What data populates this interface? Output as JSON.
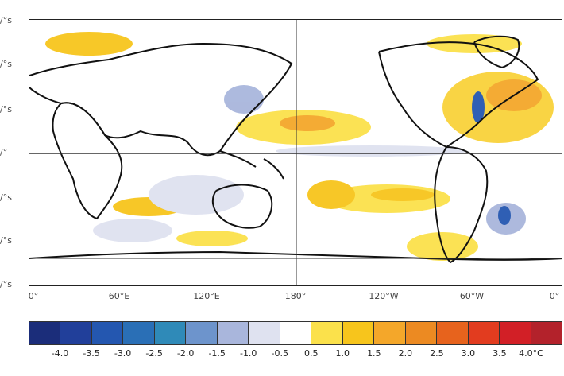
{
  "map": {
    "lat_labels": [
      "/°s",
      "/°s",
      "/°s",
      "/°",
      "/°s",
      "/°s",
      "/°s"
    ],
    "lon_labels": [
      "0°",
      "60°E",
      "120°E",
      "180°",
      "120°W",
      "60°W",
      "0°"
    ]
  },
  "colorbar": {
    "colors": [
      "#1b2d7a",
      "#213f9a",
      "#2457b0",
      "#2a6fb6",
      "#2f8ab8",
      "#6d94cc",
      "#a9b6dc",
      "#dfe2f0",
      "#ffffff",
      "#fbe14b",
      "#f7c51c",
      "#f4a72a",
      "#ec8a22",
      "#e7631d",
      "#e23c1f",
      "#d21f26",
      "#b3222b"
    ],
    "labels": [
      "-4.0",
      "-3.5",
      "-3.0",
      "-2.5",
      "-2.0",
      "-1.5",
      "-1.0",
      "-0.5",
      "0.5",
      "1.0",
      "1.5",
      "2.0",
      "2.5",
      "3.0",
      "3.5",
      "4.0°C"
    ]
  }
}
